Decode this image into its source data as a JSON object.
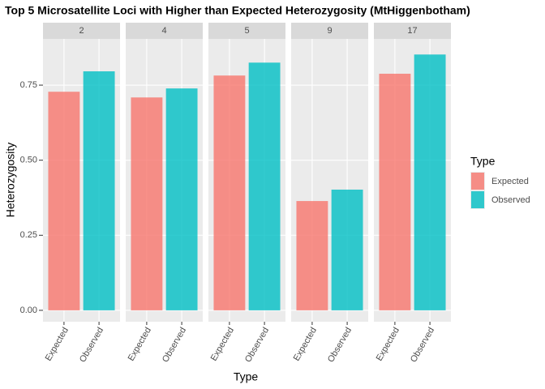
{
  "chart_data": {
    "type": "bar",
    "title": "Top 5 Microsatellite Loci with Higher than Expected Heterozygosity (MtHiggenbotham)",
    "x_label": "Type",
    "y_label": "Heterozygosity",
    "legend_title": "Type",
    "categories": [
      "Expected",
      "Observed"
    ],
    "colors": [
      "#F8766D",
      "#00BFC4"
    ],
    "alpha": 0.8,
    "facets": [
      {
        "name": "2",
        "values": [
          0.728,
          0.796
        ]
      },
      {
        "name": "4",
        "values": [
          0.709,
          0.739
        ]
      },
      {
        "name": "5",
        "values": [
          0.782,
          0.825
        ]
      },
      {
        "name": "9",
        "values": [
          0.364,
          0.402
        ]
      },
      {
        "name": "17",
        "values": [
          0.788,
          0.852
        ]
      }
    ],
    "ylim": [
      -0.038,
      0.904
    ],
    "yticks": [
      {
        "value": 0,
        "label": "0.00"
      },
      {
        "value": 0.25,
        "label": "0.25"
      },
      {
        "value": 0.5,
        "label": "0.50"
      },
      {
        "value": 0.75,
        "label": "0.75"
      }
    ],
    "grid": true
  }
}
